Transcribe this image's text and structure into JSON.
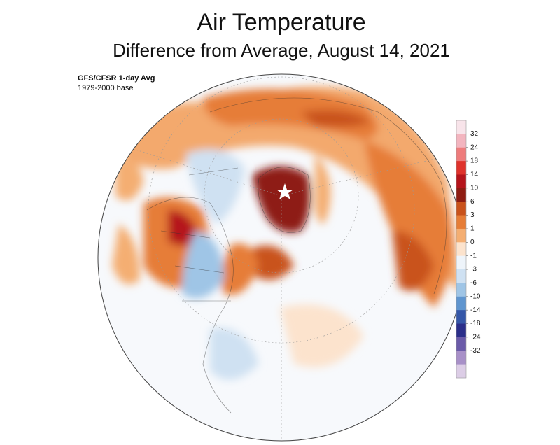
{
  "title": "Air Temperature",
  "subtitle": "Difference from Average, August 14, 2021",
  "source": "GFS/CFSR 1-day Avg",
  "base": "1979-2000 base",
  "colorbar": {
    "ticks": [
      32,
      24,
      18,
      14,
      10,
      6,
      3,
      1,
      0,
      -1,
      -3,
      -6,
      -10,
      -14,
      -18,
      -24,
      -32
    ],
    "colors": [
      "#f8e4ea",
      "#f3b5bf",
      "#ee7c7c",
      "#df332c",
      "#b5141b",
      "#8e1c12",
      "#c9521b",
      "#e67d37",
      "#f4ae72",
      "#fce3cd",
      "#eef4fa",
      "#cfe1f2",
      "#9fc5e6",
      "#5f95cf",
      "#3557a8",
      "#2b2f8a",
      "#6b5ba9",
      "#a890c8",
      "#dccde6"
    ]
  }
}
